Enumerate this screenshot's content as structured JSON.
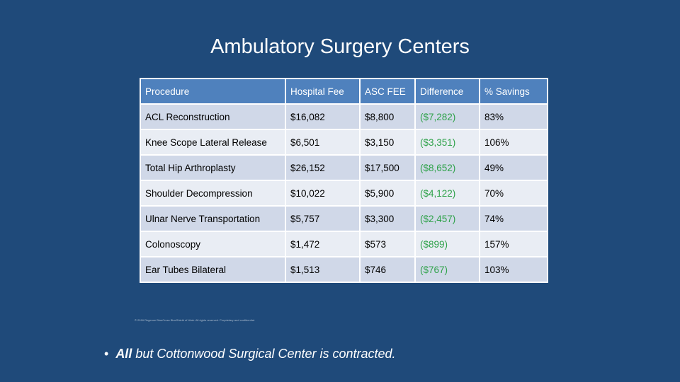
{
  "slide": {
    "title": "Ambulatory Surgery Centers",
    "footnote": "© 2016 Regence BlueCross BlueShield of Utah. All rights reserved. Proprietary and confidential.",
    "bullet": {
      "symbol": "•",
      "emphasis": "All",
      "rest": " but Cottonwood Surgical Center is contracted."
    }
  },
  "table": {
    "headers": [
      "Procedure",
      "Hospital Fee",
      "ASC FEE",
      "Difference",
      "% Savings"
    ],
    "rows": [
      [
        "ACL Reconstruction",
        "$16,082",
        "$8,800",
        "($7,282)",
        "83%"
      ],
      [
        "Knee Scope Lateral Release",
        "$6,501",
        "$3,150",
        "($3,351)",
        "106%"
      ],
      [
        "Total Hip Arthroplasty",
        "$26,152",
        "$17,500",
        "($8,652)",
        "49%"
      ],
      [
        "Shoulder Decompression",
        "$10,022",
        "$5,900",
        "($4,122)",
        "70%"
      ],
      [
        "Ulnar Nerve Transportation",
        "$5,757",
        "$3,300",
        "($2,457)",
        "74%"
      ],
      [
        "Colonoscopy",
        "$1,472",
        "$573",
        "($899)",
        "157%"
      ],
      [
        "Ear Tubes Bilateral",
        "$1,513",
        "$746",
        "($767)",
        "103%"
      ]
    ]
  },
  "colors": {
    "background": "#1f4a7a",
    "header": "#4f81bd",
    "row_dark": "#d0d8e8",
    "row_light": "#e9edf4",
    "difference_text": "#2fa24a"
  }
}
